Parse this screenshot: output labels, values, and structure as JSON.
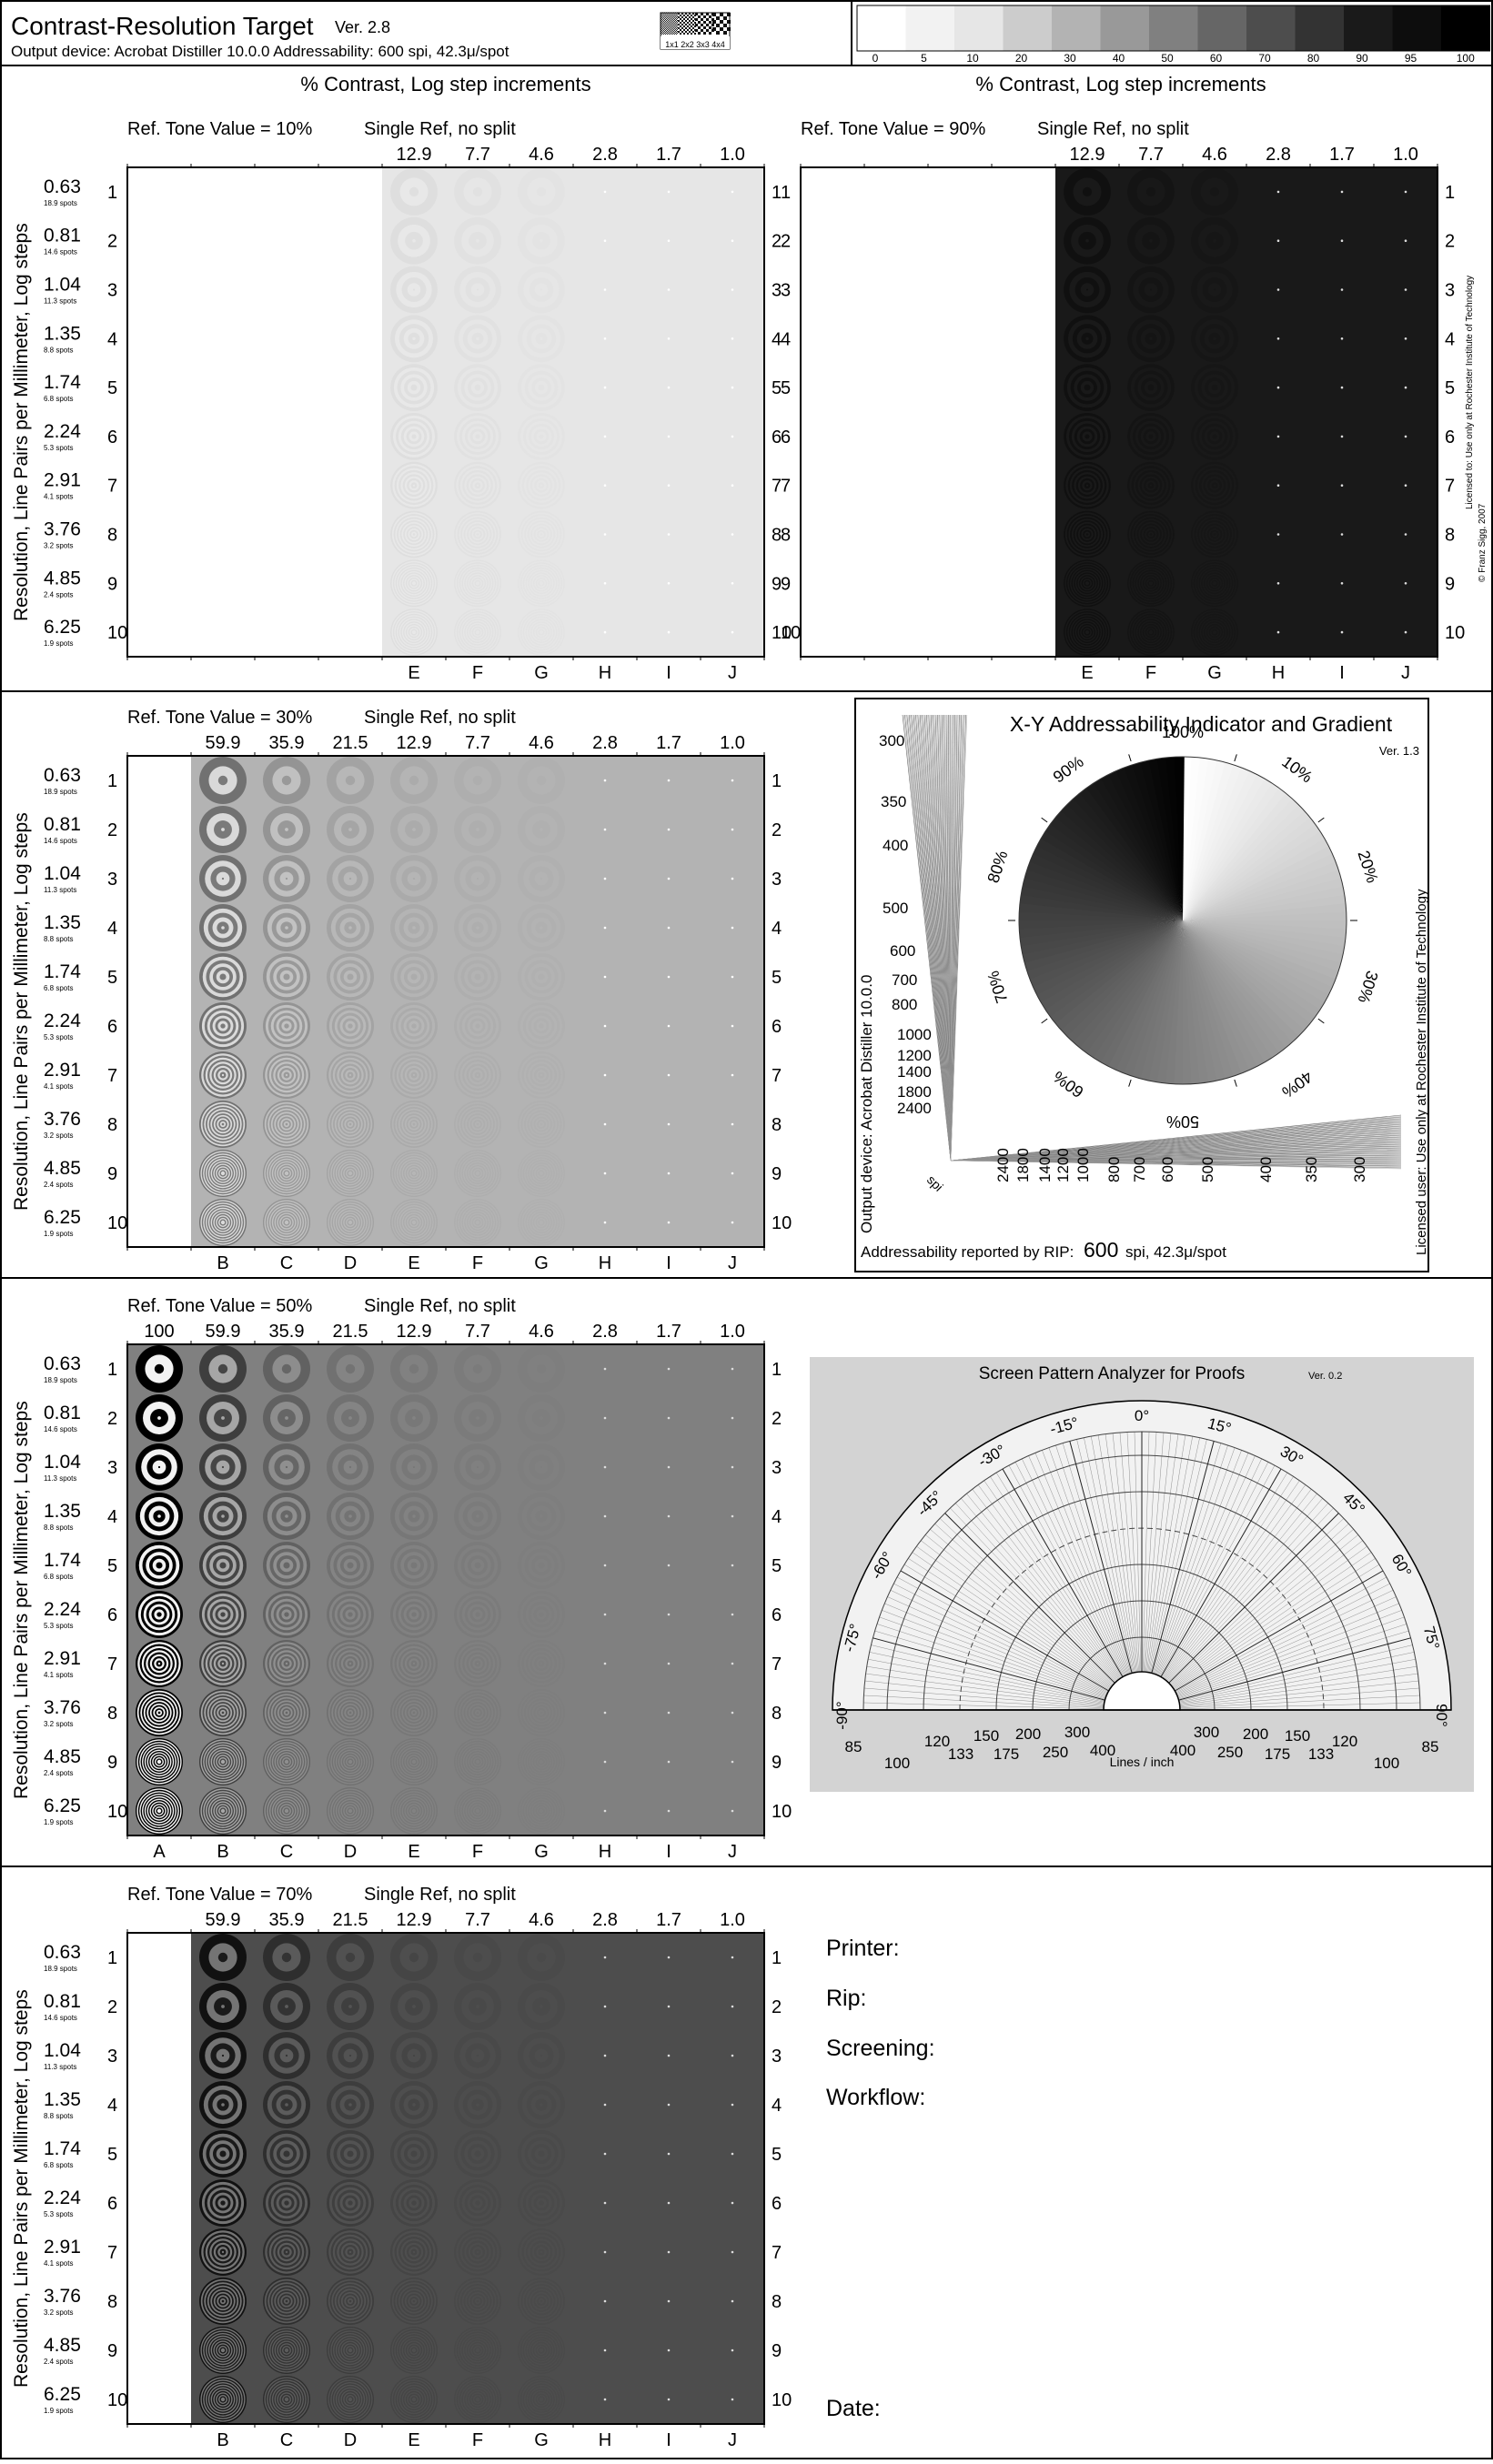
{
  "header": {
    "title": "Contrast-Resolution Target",
    "version": "Ver. 2.8",
    "output_device_line": "Output device: Acrobat Distiller 10.0.0   Addressability: 600 spi, 42.3μ/spot",
    "checker_caption": "1x1 2x2 3x3 4x4",
    "tone_scale": [
      {
        "label": "0",
        "gray": "#ffffff"
      },
      {
        "label": "5",
        "gray": "#f2f2f2"
      },
      {
        "label": "10",
        "gray": "#e6e6e6"
      },
      {
        "label": "20",
        "gray": "#cccccc"
      },
      {
        "label": "30",
        "gray": "#b3b3b3"
      },
      {
        "label": "40",
        "gray": "#999999"
      },
      {
        "label": "50",
        "gray": "#808080"
      },
      {
        "label": "60",
        "gray": "#666666"
      },
      {
        "label": "70",
        "gray": "#4d4d4d"
      },
      {
        "label": "80",
        "gray": "#333333"
      },
      {
        "label": "90",
        "gray": "#1a1a1a"
      },
      {
        "label": "95",
        "gray": "#0d0d0d"
      },
      {
        "label": "100",
        "gray": "#000000"
      }
    ]
  },
  "side_notes": {
    "license": "Licensed to:  Use only at Rochester Institute of Technology",
    "copyright": "© Franz Sigg, 2007"
  },
  "common": {
    "contrast_heading": "% Contrast,  Log step increments",
    "y_axis_label": "Resolution,  Line Pairs per Millimeter, Log steps",
    "split_note": "Single Ref, no split",
    "column_letters": [
      "A",
      "B",
      "C",
      "D",
      "E",
      "F",
      "G",
      "H",
      "I",
      "J"
    ],
    "column_contrasts": [
      "100",
      "59.9",
      "35.9",
      "21.5",
      "12.9",
      "7.7",
      "4.6",
      "2.8",
      "1.7",
      "1.0"
    ],
    "rows": [
      {
        "index": "1",
        "lpmm": "0.63",
        "spots": "18.9 spots"
      },
      {
        "index": "2",
        "lpmm": "0.81",
        "spots": "14.6 spots"
      },
      {
        "index": "3",
        "lpmm": "1.04",
        "spots": "11.3 spots"
      },
      {
        "index": "4",
        "lpmm": "1.35",
        "spots": "8.8 spots"
      },
      {
        "index": "5",
        "lpmm": "1.74",
        "spots": "6.8 spots"
      },
      {
        "index": "6",
        "lpmm": "2.24",
        "spots": "5.3 spots"
      },
      {
        "index": "7",
        "lpmm": "2.91",
        "spots": "4.1 spots"
      },
      {
        "index": "8",
        "lpmm": "3.76",
        "spots": "3.2 spots"
      },
      {
        "index": "9",
        "lpmm": "4.85",
        "spots": "2.4 spots"
      },
      {
        "index": "10",
        "lpmm": "6.25",
        "spots": "1.9 spots"
      }
    ]
  },
  "targets": [
    {
      "ref_label": "Ref. Tone Value = 10%",
      "tone_percent": 10,
      "first_column": "E"
    },
    {
      "ref_label": "Ref. Tone Value = 90%",
      "tone_percent": 90,
      "first_column": "E"
    },
    {
      "ref_label": "Ref. Tone Value = 30%",
      "tone_percent": 30,
      "first_column": "B"
    },
    {
      "ref_label": "Ref. Tone Value = 50%",
      "tone_percent": 50,
      "first_column": "A"
    },
    {
      "ref_label": "Ref. Tone Value = 70%",
      "tone_percent": 70,
      "first_column": "B"
    }
  ],
  "xy_indicator": {
    "title": "X-Y Addressability Indicator and Gradient",
    "version": "Ver. 1.3",
    "percent_labels": [
      "100%",
      "10%",
      "20%",
      "30%",
      "40%",
      "50%",
      "60%",
      "70%",
      "80%",
      "90%"
    ],
    "fan_labels": [
      "300",
      "350",
      "400",
      "500",
      "600",
      "700",
      "800",
      "1000",
      "1200",
      "1400",
      "1800",
      "2400"
    ],
    "spi_label": "spi",
    "output_device_vertical": "Output device:  Acrobat Distiller 10.0.0",
    "licensed_vertical": "Licensed user: Use only at Rochester Institute of Technology",
    "reported_prefix": "Addressability reported by RIP:",
    "reported_value": "600",
    "reported_suffix": "spi,  42.3μ/spot"
  },
  "screen_analyzer": {
    "title": "Screen Pattern Analyzer for Proofs",
    "version": "Ver. 0.2",
    "angle_labels": [
      "-90°",
      "-75°",
      "-60°",
      "-45°",
      "-30°",
      "-15°",
      "0°",
      "15°",
      "30°",
      "45°",
      "60°",
      "75°",
      "90°"
    ],
    "lpi_labels": [
      "85",
      "100",
      "120",
      "133",
      "150",
      "175",
      "200",
      "250",
      "300",
      "400"
    ],
    "lines_per_inch": "Lines / inch"
  },
  "form": {
    "printer_label": "Printer:",
    "rip_label": "Rip:",
    "screening_label": "Screening:",
    "workflow_label": "Workflow:",
    "date_label": "Date:"
  }
}
